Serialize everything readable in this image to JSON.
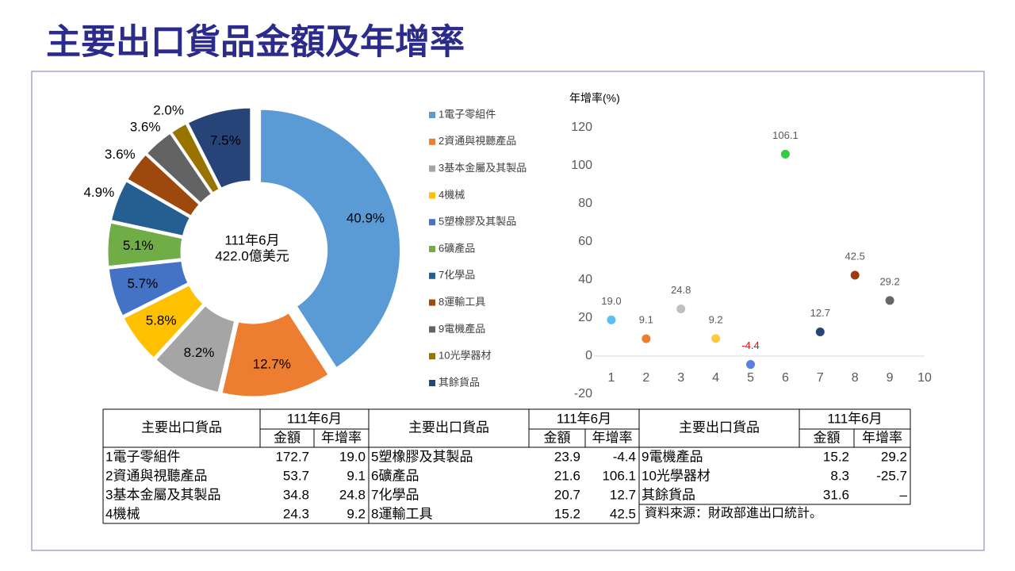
{
  "title": "主要出口貨品金額及年增率",
  "chart_data": [
    {
      "type": "donut",
      "center_text": [
        "111年6月",
        "422.0億美元"
      ],
      "categories": [
        "1電子零組件",
        "2資通與視聽產品",
        "3基本金屬及其製品",
        "4機械",
        "5塑橡膠及其製品",
        "6礦產品",
        "7化學品",
        "8運輸工具",
        "9電機產品",
        "10光學器材",
        "其餘貨品"
      ],
      "values": [
        40.9,
        12.7,
        8.2,
        5.8,
        5.7,
        5.1,
        4.9,
        3.6,
        3.6,
        2.0,
        7.5
      ],
      "value_labels": [
        "40.9%",
        "12.7%",
        "8.2%",
        "5.8%",
        "5.7%",
        "5.1%",
        "4.9%",
        "3.6%",
        "3.6%",
        "2.0%",
        "7.5%"
      ],
      "colors": [
        "#5b9bd5",
        "#ed7d31",
        "#a5a5a5",
        "#ffc000",
        "#4472c4",
        "#70ad47",
        "#255e91",
        "#9e480e",
        "#636363",
        "#997300",
        "#264478"
      ]
    },
    {
      "type": "scatter",
      "y_label": "年增率(%)",
      "x": [
        1,
        2,
        3,
        4,
        5,
        6,
        7,
        8,
        9
      ],
      "values": [
        19.0,
        9.1,
        24.8,
        9.2,
        -4.4,
        106.1,
        12.7,
        42.5,
        29.2
      ],
      "value_labels": [
        "19.0",
        "9.1",
        "24.8",
        "9.2",
        "-4.4",
        "106.1",
        "12.7",
        "42.5",
        "29.2"
      ],
      "colors": [
        "#5bc0f0",
        "#ed7d31",
        "#bfbfbf",
        "#ffc83d",
        "#5b7fe0",
        "#2ecc40",
        "#264478",
        "#9e3a0e",
        "#666666"
      ],
      "negative_label_color": "#ff0000",
      "xlim": [
        0.5,
        10
      ],
      "xticks": [
        1,
        2,
        3,
        4,
        5,
        6,
        7,
        8,
        9,
        10
      ],
      "ylim": [
        -20,
        120
      ],
      "yticks": [
        -20,
        0,
        20,
        40,
        60,
        80,
        100,
        120
      ],
      "grid": false
    }
  ],
  "table": {
    "header": {
      "item": "主要出口貨品",
      "period": "111年6月",
      "amount": "金額",
      "growth": "年增率"
    },
    "groups": [
      {
        "rows": [
          [
            "1電子零組件",
            "172.7",
            "19.0"
          ],
          [
            "2資通與視聽產品",
            "53.7",
            "9.1"
          ],
          [
            "3基本金屬及其製品",
            "34.8",
            "24.8"
          ],
          [
            "4機械",
            "24.3",
            "9.2"
          ]
        ]
      },
      {
        "rows": [
          [
            "5塑橡膠及其製品",
            "23.9",
            "-4.4"
          ],
          [
            "6礦產品",
            "21.6",
            "106.1"
          ],
          [
            "7化學品",
            "20.7",
            "12.7"
          ],
          [
            "8運輸工具",
            "15.2",
            "42.5"
          ]
        ]
      },
      {
        "rows": [
          [
            "9電機產品",
            "15.2",
            "29.2"
          ],
          [
            "10光學器材",
            "8.3",
            "-25.7"
          ],
          [
            "其餘貨品",
            "31.6",
            "–"
          ]
        ]
      }
    ]
  },
  "source": "資料來源：財政部進出口統計。"
}
